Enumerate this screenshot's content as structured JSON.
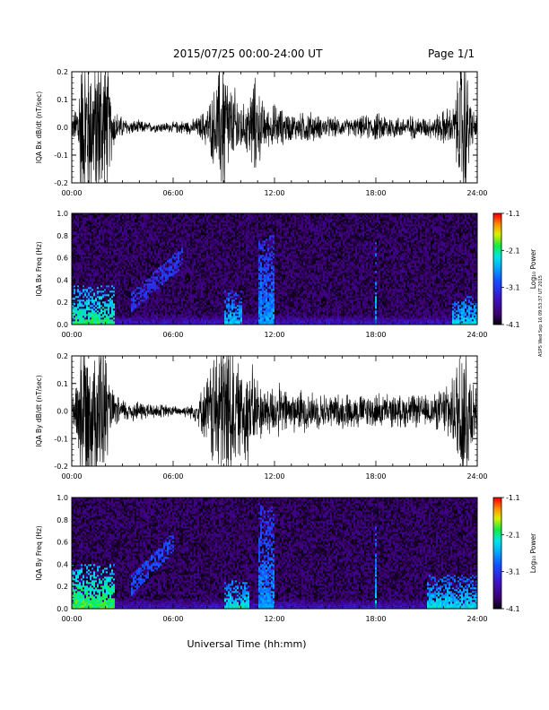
{
  "header": {
    "title": "2015/07/25  00:00-24:00 UT",
    "page": "Page 1/1"
  },
  "xlabel": "Universal Time (hh:mm)",
  "x_ticks": [
    "00:00",
    "06:00",
    "12:00",
    "18:00",
    "24:00"
  ],
  "side_stamp": "ASPS Wed Sep 16 09:53:37 UT 2015",
  "colors": {
    "trace": "#000000",
    "axis": "#000000"
  },
  "colormap": "rainbow (black-purple-blue-cyan-green-yellow-orange-red)",
  "chart_data": [
    {
      "type": "line",
      "title": "",
      "ylabel": "IQA Bx dB/dt (nT/sec)",
      "xlim": [
        0,
        24
      ],
      "ylim": [
        -0.2,
        0.2
      ],
      "y_ticks": [
        "0.2",
        "0.1",
        "0.0",
        "-0.1",
        "-0.2"
      ],
      "y_tick_values": [
        0.2,
        0.1,
        0.0,
        -0.1,
        -0.2
      ],
      "envelope": {
        "hours": [
          0,
          0.25,
          0.5,
          0.75,
          1,
          1.25,
          1.5,
          1.75,
          2,
          2.25,
          2.5,
          2.75,
          3,
          3.5,
          4,
          4.5,
          5,
          5.5,
          6,
          6.5,
          7,
          7.5,
          8,
          8.5,
          9,
          9.25,
          9.5,
          9.75,
          10,
          10.25,
          10.5,
          10.75,
          11,
          11.25,
          11.5,
          11.75,
          12,
          12.5,
          13,
          13.5,
          14,
          14.5,
          15,
          15.5,
          16,
          16.5,
          17,
          17.5,
          18,
          18.5,
          19,
          19.5,
          20,
          20.5,
          21,
          21.5,
          22,
          22.25,
          22.5,
          22.75,
          23,
          23.25,
          23.5,
          23.75,
          24
        ],
        "amplitude": [
          0.03,
          0.06,
          0.2,
          0.25,
          0.25,
          0.2,
          0.25,
          0.25,
          0.25,
          0.12,
          0.06,
          0.04,
          0.03,
          0.02,
          0.02,
          0.015,
          0.015,
          0.015,
          0.015,
          0.02,
          0.02,
          0.03,
          0.06,
          0.12,
          0.25,
          0.15,
          0.1,
          0.12,
          0.08,
          0.06,
          0.1,
          0.15,
          0.12,
          0.08,
          0.06,
          0.05,
          0.07,
          0.05,
          0.04,
          0.04,
          0.05,
          0.035,
          0.03,
          0.03,
          0.025,
          0.025,
          0.03,
          0.035,
          0.04,
          0.04,
          0.035,
          0.03,
          0.035,
          0.03,
          0.03,
          0.035,
          0.05,
          0.06,
          0.05,
          0.1,
          0.2,
          0.25,
          0.12,
          0.05,
          0.03
        ]
      }
    },
    {
      "type": "heatmap",
      "title": "",
      "ylabel": "IQA Bx Freq (Hz)",
      "xlim": [
        0,
        24
      ],
      "ylim": [
        0,
        1.0
      ],
      "y_ticks": [
        "1.0",
        "0.8",
        "0.6",
        "0.4",
        "0.2",
        "0.0"
      ],
      "y_tick_values": [
        1.0,
        0.8,
        0.6,
        0.4,
        0.2,
        0.0
      ],
      "colorbar": {
        "label": "Log₁₀ Power",
        "ticks": [
          "-1.1",
          "-2.1",
          "-3.1",
          "-4.1"
        ],
        "tick_values": [
          -1.1,
          -2.1,
          -3.1,
          -4.1
        ],
        "range": [
          -4.1,
          -1.1
        ]
      },
      "features": [
        {
          "hours": [
            0,
            2.5
          ],
          "freq_max_hz": 0.35,
          "level": -2.6
        },
        {
          "hours": [
            3.5,
            6.5
          ],
          "freq_max_hz": 0.6,
          "level": -3.1,
          "note": "rising diagonal band"
        },
        {
          "hours": [
            9,
            10
          ],
          "freq_max_hz": 0.3,
          "level": -3.0
        },
        {
          "hours": [
            11,
            12
          ],
          "freq_max_hz": 0.8,
          "level": -3.2
        },
        {
          "hours": [
            18,
            18.05
          ],
          "freq_max_hz": 0.75,
          "level": -3.0
        },
        {
          "hours": [
            22.5,
            24
          ],
          "freq_max_hz": 0.25,
          "level": -2.9
        }
      ]
    },
    {
      "type": "line",
      "title": "",
      "ylabel": "IQA By dB/dt (nT/sec)",
      "xlim": [
        0,
        24
      ],
      "ylim": [
        -0.2,
        0.2
      ],
      "y_ticks": [
        "0.2",
        "0.1",
        "0.0",
        "-0.1",
        "-0.2"
      ],
      "y_tick_values": [
        0.2,
        0.1,
        0.0,
        -0.1,
        -0.2
      ],
      "envelope": {
        "hours": [
          0,
          0.25,
          0.5,
          0.75,
          1,
          1.25,
          1.5,
          1.75,
          2,
          2.25,
          2.5,
          2.75,
          3,
          3.5,
          4,
          4.5,
          5,
          5.5,
          6,
          6.5,
          7,
          7.5,
          8,
          8.5,
          9,
          9.25,
          9.5,
          9.75,
          10,
          10.25,
          10.5,
          10.75,
          11,
          11.25,
          11.5,
          11.75,
          12,
          12.5,
          13,
          13.5,
          14,
          14.5,
          15,
          15.5,
          16,
          16.5,
          17,
          17.5,
          18,
          18.5,
          19,
          19.5,
          20,
          20.5,
          21,
          21.5,
          22,
          22.25,
          22.5,
          22.75,
          23,
          23.25,
          23.5,
          23.75,
          24
        ],
        "amplitude": [
          0.04,
          0.08,
          0.25,
          0.25,
          0.25,
          0.2,
          0.25,
          0.25,
          0.18,
          0.08,
          0.05,
          0.04,
          0.035,
          0.03,
          0.03,
          0.025,
          0.02,
          0.02,
          0.015,
          0.015,
          0.02,
          0.04,
          0.1,
          0.2,
          0.25,
          0.25,
          0.2,
          0.15,
          0.12,
          0.18,
          0.15,
          0.12,
          0.1,
          0.08,
          0.07,
          0.08,
          0.08,
          0.07,
          0.06,
          0.06,
          0.06,
          0.05,
          0.05,
          0.05,
          0.05,
          0.05,
          0.05,
          0.05,
          0.05,
          0.05,
          0.045,
          0.045,
          0.05,
          0.045,
          0.045,
          0.05,
          0.07,
          0.1,
          0.08,
          0.15,
          0.25,
          0.25,
          0.2,
          0.1,
          0.05
        ]
      }
    },
    {
      "type": "heatmap",
      "title": "",
      "ylabel": "IQA By Freq (Hz)",
      "xlim": [
        0,
        24
      ],
      "ylim": [
        0,
        1.0
      ],
      "y_ticks": [
        "1.0",
        "0.8",
        "0.6",
        "0.4",
        "0.2",
        "0.0"
      ],
      "y_tick_values": [
        1.0,
        0.8,
        0.6,
        0.4,
        0.2,
        0.0
      ],
      "colorbar": {
        "label": "Log₁₀ Power",
        "ticks": [
          "-1.1",
          "-2.1",
          "-3.1",
          "-4.1"
        ],
        "tick_values": [
          -1.1,
          -2.1,
          -3.1,
          -4.1
        ],
        "range": [
          -4.1,
          -1.1
        ]
      },
      "features": [
        {
          "hours": [
            0,
            2.5
          ],
          "freq_max_hz": 0.4,
          "level": -2.5
        },
        {
          "hours": [
            3.5,
            6.0
          ],
          "freq_max_hz": 0.6,
          "level": -3.0,
          "note": "rising diagonal band"
        },
        {
          "hours": [
            9,
            10.5
          ],
          "freq_max_hz": 0.25,
          "level": -2.8
        },
        {
          "hours": [
            11,
            12
          ],
          "freq_max_hz": 0.95,
          "level": -3.2
        },
        {
          "hours": [
            18,
            18.05
          ],
          "freq_max_hz": 0.75,
          "level": -3.0
        },
        {
          "hours": [
            21,
            24
          ],
          "freq_max_hz": 0.3,
          "level": -2.9
        }
      ]
    }
  ]
}
